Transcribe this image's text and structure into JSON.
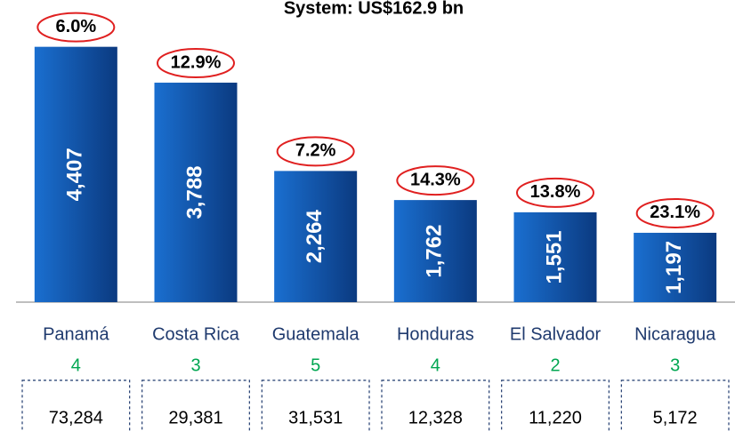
{
  "chart_data": {
    "type": "bar",
    "title": "System: US$162.9 bn",
    "categories": [
      "Panamá",
      "Costa Rica",
      "Guatemala",
      "Honduras",
      "El Salvador",
      "Nicaragua"
    ],
    "values": [
      4407,
      3788,
      2264,
      1762,
      1551,
      1197
    ],
    "value_labels": [
      "4,407",
      "3,788",
      "2,264",
      "1,762",
      "1,551",
      "1,197"
    ],
    "percent_labels": [
      "6.0%",
      "12.9%",
      "7.2%",
      "14.3%",
      "13.8%",
      "23.1%"
    ],
    "counts": [
      4,
      3,
      5,
      4,
      2,
      3
    ],
    "totals": [
      "73,284",
      "29,381",
      "31,531",
      "12,328",
      "11,220",
      "5,172"
    ],
    "color": "#1565c0",
    "ylim": [
      0,
      5000
    ]
  }
}
